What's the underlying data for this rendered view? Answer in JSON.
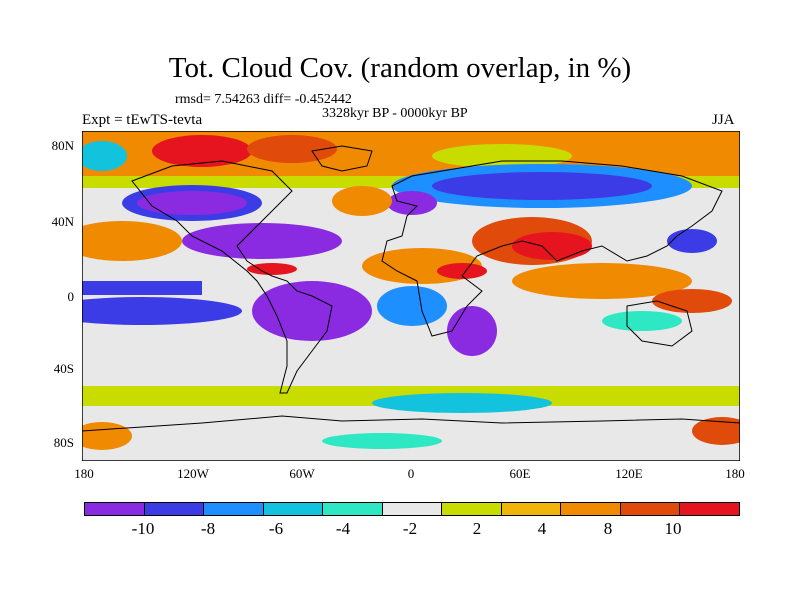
{
  "title": "Tot. Cloud Cov. (random overlap, in %)",
  "stats": "rmsd= 7.54263 diff= -0.452442",
  "experiment": "Expt = tEwTS-tevta",
  "period": "3328kyr BP - 0000kyr BP",
  "season": "JJA",
  "lat_labels": [
    "80N",
    "40N",
    "0",
    "40S",
    "80S"
  ],
  "lon_labels": [
    "180",
    "120W",
    "60W",
    "0",
    "60E",
    "120E",
    "180"
  ],
  "colorbar": {
    "colors": [
      "#8a2be2",
      "#3c3ce6",
      "#1e8fff",
      "#13c2dc",
      "#2ee8c4",
      "#e8e8e8",
      "#c8dc00",
      "#f0b40a",
      "#f08a00",
      "#e04a0a",
      "#e6141e"
    ],
    "labels": [
      "-10",
      "-8",
      "-6",
      "-4",
      "-2",
      "2",
      "4",
      "8",
      "10"
    ]
  },
  "palette": {
    "purple": "#8a2be2",
    "blue": "#3c3ce6",
    "azure": "#1e8fff",
    "cyan": "#13c2dc",
    "teal": "#2ee8c4",
    "neutral": "#e8e8e8",
    "yellow": "#c8dc00",
    "gold": "#f0b40a",
    "orange": "#f08a00",
    "darkorange": "#e04a0a",
    "red": "#e6141e"
  }
}
